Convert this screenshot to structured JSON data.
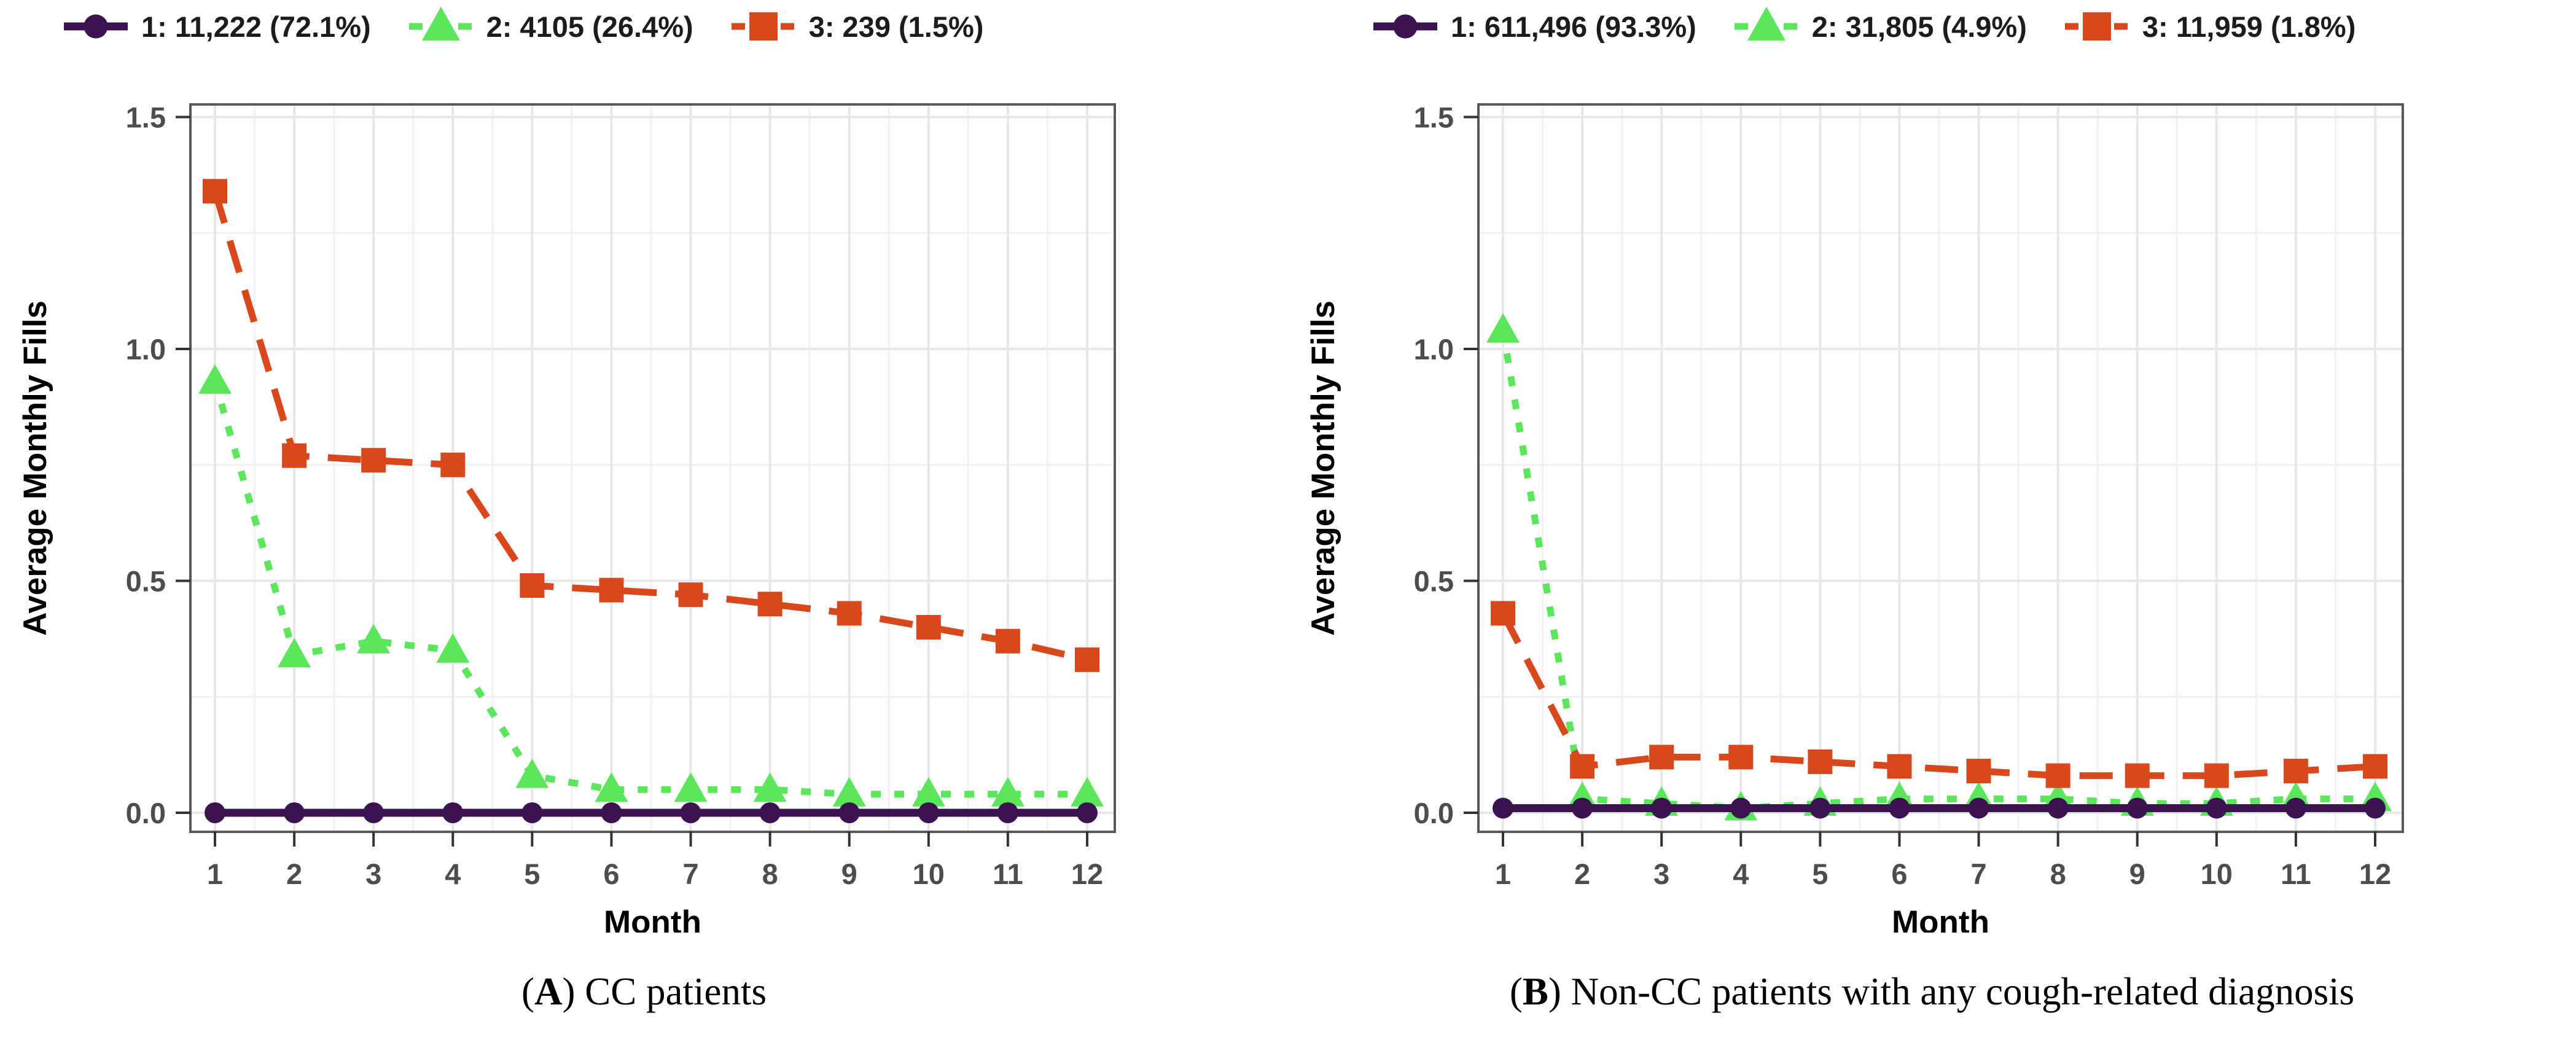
{
  "figure": {
    "background": "#ffffff",
    "grid_major_color": "#e7e7e7",
    "grid_minor_color": "#f1f1f1",
    "panel_border_color": "#595959",
    "tick_label_color": "#4d4d4d"
  },
  "chart_data": [
    {
      "type": "line",
      "panel": "A",
      "caption": {
        "open": "(",
        "letter": "A",
        "rest": ") CC patients"
      },
      "x": [
        1,
        2,
        3,
        4,
        5,
        6,
        7,
        8,
        9,
        10,
        11,
        12
      ],
      "xlabel": "Month",
      "ylabel": "Average Monthly Fills",
      "ylim": [
        0,
        1.5
      ],
      "yticks": [
        0.0,
        0.5,
        1.0,
        1.5
      ],
      "grid": "major+minor",
      "legend_position": "top",
      "series": [
        {
          "name": "1: 11,222 (72.1%)",
          "marker": "circle",
          "line": "solid",
          "color": "#3a1350",
          "values": [
            0.0,
            0.0,
            0.0,
            0.0,
            0.0,
            0.0,
            0.0,
            0.0,
            0.0,
            0.0,
            0.0,
            0.0
          ]
        },
        {
          "name": "2: 4105 (26.4%)",
          "marker": "triangle",
          "line": "dotted",
          "color": "#5ce65c",
          "values": [
            0.93,
            0.34,
            0.37,
            0.35,
            0.08,
            0.05,
            0.05,
            0.05,
            0.04,
            0.04,
            0.04,
            0.04
          ]
        },
        {
          "name": "3: 239 (1.5%)",
          "marker": "square",
          "line": "dashed",
          "color": "#d9481c",
          "values": [
            1.34,
            0.77,
            0.76,
            0.75,
            0.49,
            0.48,
            0.47,
            0.45,
            0.43,
            0.4,
            0.37,
            0.33
          ]
        }
      ]
    },
    {
      "type": "line",
      "panel": "B",
      "caption": {
        "open": "(",
        "letter": "B",
        "rest": ") Non-CC patients with any cough-related diagnosis"
      },
      "x": [
        1,
        2,
        3,
        4,
        5,
        6,
        7,
        8,
        9,
        10,
        11,
        12
      ],
      "xlabel": "Month",
      "ylabel": "Average Monthly Fills",
      "ylim": [
        0,
        1.5
      ],
      "yticks": [
        0.0,
        0.5,
        1.0,
        1.5
      ],
      "grid": "major+minor",
      "legend_position": "top",
      "series": [
        {
          "name": "1: 611,496 (93.3%)",
          "marker": "circle",
          "line": "solid",
          "color": "#3a1350",
          "values": [
            0.01,
            0.01,
            0.01,
            0.01,
            0.01,
            0.01,
            0.01,
            0.01,
            0.01,
            0.01,
            0.01,
            0.01
          ]
        },
        {
          "name": "2: 31,805 (4.9%)",
          "marker": "triangle",
          "line": "dotted",
          "color": "#5ce65c",
          "values": [
            1.04,
            0.03,
            0.02,
            0.01,
            0.02,
            0.03,
            0.03,
            0.03,
            0.02,
            0.02,
            0.03,
            0.03
          ]
        },
        {
          "name": "3: 11,959 (1.8%)",
          "marker": "square",
          "line": "dashed",
          "color": "#d9481c",
          "values": [
            0.43,
            0.1,
            0.12,
            0.12,
            0.11,
            0.1,
            0.09,
            0.08,
            0.08,
            0.08,
            0.09,
            0.1
          ]
        }
      ]
    }
  ]
}
